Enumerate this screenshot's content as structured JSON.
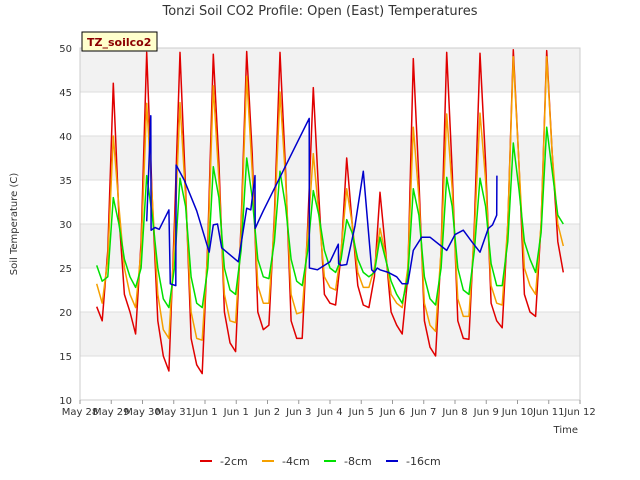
{
  "chart_data": {
    "type": "line",
    "title": "Tonzi Soil CO2 Profile: Open (East) Temperatures",
    "xlabel": "Time",
    "ylabel": "Soil Temperature (C)",
    "site_label": "TZ_soilco2",
    "ylim": [
      10,
      50
    ],
    "yticks": [
      10,
      15,
      20,
      25,
      30,
      35,
      40,
      45,
      50
    ],
    "xlim": [
      "2024-05-28",
      "2024-06-12"
    ],
    "xtick_labels": [
      "May 28",
      "May 29",
      "May 30",
      "May 31",
      "Jun 1",
      "Jun 1",
      "Jun 2",
      "Jun 3",
      "Jun 4",
      "Jun 5",
      "Jun 6",
      "Jun 7",
      "Jun 8",
      "Jun 9",
      "Jun 10",
      "Jun 11",
      "Jun 12"
    ],
    "grid": "horizontal bands",
    "legend_position": "bottom",
    "series": [
      {
        "name": "-2cm",
        "color": "#e00000",
        "x": [
          "2024-05-28T12:00",
          "2024-05-28T16:00",
          "2024-05-28T20:00",
          "2024-05-29T00:00",
          "2024-05-29T04:00",
          "2024-05-29T08:00",
          "2024-05-29T12:00",
          "2024-05-29T16:00",
          "2024-05-29T20:00",
          "2024-05-30T00:00",
          "2024-05-30T04:00",
          "2024-05-30T08:00",
          "2024-05-30T12:00",
          "2024-05-30T16:00",
          "2024-05-30T20:00",
          "2024-05-31T00:00",
          "2024-05-31T04:00",
          "2024-05-31T08:00",
          "2024-05-31T12:00",
          "2024-05-31T16:00",
          "2024-05-31T20:00",
          "2024-06-01T00:00",
          "2024-06-01T04:00",
          "2024-06-01T08:00",
          "2024-06-01T12:00",
          "2024-06-01T16:00",
          "2024-06-01T20:00",
          "2024-06-02T00:00",
          "2024-06-02T04:00",
          "2024-06-02T08:00",
          "2024-06-02T12:00",
          "2024-06-02T16:00",
          "2024-06-02T20:00",
          "2024-06-03T00:00",
          "2024-06-03T04:00",
          "2024-06-03T08:00",
          "2024-06-03T12:00",
          "2024-06-03T16:00",
          "2024-06-03T20:00",
          "2024-06-04T00:00",
          "2024-06-04T04:00",
          "2024-06-04T08:00",
          "2024-06-04T12:00",
          "2024-06-04T16:00",
          "2024-06-04T20:00",
          "2024-06-05T00:00",
          "2024-06-05T04:00",
          "2024-06-05T08:00",
          "2024-06-05T12:00",
          "2024-06-05T16:00",
          "2024-06-05T20:00",
          "2024-06-06T00:00",
          "2024-06-06T04:00",
          "2024-06-06T08:00",
          "2024-06-06T12:00",
          "2024-06-06T16:00",
          "2024-06-06T20:00",
          "2024-06-07T00:00",
          "2024-06-07T04:00",
          "2024-06-07T08:00",
          "2024-06-07T12:00",
          "2024-06-07T16:00",
          "2024-06-07T20:00",
          "2024-06-08T00:00",
          "2024-06-08T04:00",
          "2024-06-08T08:00",
          "2024-06-08T12:00",
          "2024-06-08T16:00",
          "2024-06-08T20:00",
          "2024-06-09T00:00",
          "2024-06-09T04:00",
          "2024-06-09T08:00",
          "2024-06-09T12:00",
          "2024-06-09T16:00",
          "2024-06-09T20:00",
          "2024-06-10T00:00",
          "2024-06-10T04:00",
          "2024-06-10T08:00",
          "2024-06-10T12:00",
          "2024-06-10T16:00",
          "2024-06-10T20:00",
          "2024-06-11T00:00",
          "2024-06-11T04:00",
          "2024-06-11T08:00",
          "2024-06-11T12:00"
        ],
        "y": [
          20.6,
          19.0,
          27.0,
          46.0,
          31.0,
          22.0,
          20.0,
          17.5,
          28.0,
          49.5,
          33.0,
          19.0,
          15.0,
          13.3,
          30.0,
          49.5,
          34.0,
          17.0,
          14.0,
          13.0,
          28.0,
          49.3,
          37.0,
          20.0,
          16.5,
          15.5,
          30.0,
          49.6,
          38.0,
          20.0,
          18.0,
          18.5,
          31.0,
          49.5,
          36.0,
          19.0,
          17.0,
          17.0,
          30.0,
          45.5,
          33.0,
          22.0,
          21.0,
          20.8,
          26.5,
          37.5,
          30.0,
          23.0,
          20.8,
          20.5,
          24.0,
          33.6,
          27.0,
          20.0,
          18.5,
          17.5,
          24.0,
          48.8,
          35.0,
          19.0,
          16.0,
          15.0,
          27.0,
          49.5,
          36.0,
          19.0,
          17.0,
          16.9,
          30.0,
          49.4,
          37.0,
          21.0,
          19.0,
          18.2,
          30.0,
          49.8,
          37.0,
          22.0,
          20.0,
          19.5,
          30.0,
          49.7,
          38.0,
          28.0,
          24.5
        ]
      },
      {
        "name": "-4cm",
        "color": "#f5a000",
        "x": [
          "2024-05-28T12:00",
          "2024-05-28T16:00",
          "2024-05-28T20:00",
          "2024-05-29T00:00",
          "2024-05-29T04:00",
          "2024-05-29T08:00",
          "2024-05-29T12:00",
          "2024-05-29T16:00",
          "2024-05-29T20:00",
          "2024-05-30T00:00",
          "2024-05-30T04:00",
          "2024-05-30T08:00",
          "2024-05-30T12:00",
          "2024-05-30T16:00",
          "2024-05-30T20:00",
          "2024-05-31T00:00",
          "2024-05-31T04:00",
          "2024-05-31T08:00",
          "2024-05-31T12:00",
          "2024-05-31T16:00",
          "2024-05-31T20:00",
          "2024-06-01T00:00",
          "2024-06-01T04:00",
          "2024-06-01T08:00",
          "2024-06-01T12:00",
          "2024-06-01T16:00",
          "2024-06-01T20:00",
          "2024-06-02T00:00",
          "2024-06-02T04:00",
          "2024-06-02T08:00",
          "2024-06-02T12:00",
          "2024-06-02T16:00",
          "2024-06-02T20:00",
          "2024-06-03T00:00",
          "2024-06-03T04:00",
          "2024-06-03T08:00",
          "2024-06-03T12:00",
          "2024-06-03T16:00",
          "2024-06-03T20:00",
          "2024-06-04T00:00",
          "2024-06-04T04:00",
          "2024-06-04T08:00",
          "2024-06-04T12:00",
          "2024-06-04T16:00",
          "2024-06-04T20:00",
          "2024-06-05T00:00",
          "2024-06-05T04:00",
          "2024-06-05T08:00",
          "2024-06-05T12:00",
          "2024-06-05T16:00",
          "2024-06-05T20:00",
          "2024-06-06T00:00",
          "2024-06-06T04:00",
          "2024-06-06T08:00",
          "2024-06-06T12:00",
          "2024-06-06T16:00",
          "2024-06-06T20:00",
          "2024-06-07T00:00",
          "2024-06-07T04:00",
          "2024-06-07T08:00",
          "2024-06-07T12:00",
          "2024-06-07T16:00",
          "2024-06-07T20:00",
          "2024-06-08T00:00",
          "2024-06-08T04:00",
          "2024-06-08T08:00",
          "2024-06-08T12:00",
          "2024-06-08T16:00",
          "2024-06-08T20:00",
          "2024-06-09T00:00",
          "2024-06-09T04:00",
          "2024-06-09T08:00",
          "2024-06-09T12:00",
          "2024-06-09T16:00",
          "2024-06-09T20:00",
          "2024-06-10T00:00",
          "2024-06-10T04:00",
          "2024-06-10T08:00",
          "2024-06-10T12:00",
          "2024-06-10T16:00",
          "2024-06-10T20:00",
          "2024-06-11T00:00",
          "2024-06-11T04:00",
          "2024-06-11T08:00",
          "2024-06-11T12:00"
        ],
        "y": [
          23.2,
          21.0,
          26.0,
          40.0,
          32.0,
          25.0,
          22.0,
          20.5,
          27.0,
          43.7,
          33.0,
          22.0,
          18.0,
          17.0,
          28.0,
          43.8,
          33.0,
          20.0,
          17.0,
          16.8,
          27.0,
          45.7,
          35.0,
          22.0,
          19.0,
          18.8,
          29.0,
          46.8,
          36.0,
          23.0,
          21.0,
          21.0,
          30.0,
          45.0,
          35.0,
          22.0,
          19.8,
          20.0,
          29.0,
          38.0,
          31.0,
          24.0,
          22.8,
          22.5,
          27.0,
          34.0,
          30.0,
          24.5,
          22.8,
          22.8,
          25.0,
          29.5,
          26.5,
          22.0,
          21.0,
          20.5,
          25.0,
          41.0,
          33.0,
          21.0,
          18.5,
          17.8,
          27.0,
          42.5,
          34.0,
          21.5,
          19.5,
          19.5,
          29.0,
          42.6,
          35.0,
          23.0,
          21.0,
          20.8,
          30.0,
          49.0,
          37.0,
          25.0,
          23.0,
          22.0,
          30.0,
          49.0,
          38.0,
          30.0,
          27.5
        ]
      },
      {
        "name": "-8cm",
        "color": "#00e000",
        "x": [
          "2024-05-28T12:00",
          "2024-05-28T16:00",
          "2024-05-28T20:00",
          "2024-05-29T00:00",
          "2024-05-29T04:00",
          "2024-05-29T08:00",
          "2024-05-29T12:00",
          "2024-05-29T16:00",
          "2024-05-29T20:00",
          "2024-05-30T00:00",
          "2024-05-30T04:00",
          "2024-05-30T08:00",
          "2024-05-30T12:00",
          "2024-05-30T16:00",
          "2024-05-30T20:00",
          "2024-05-31T00:00",
          "2024-05-31T04:00",
          "2024-05-31T08:00",
          "2024-05-31T12:00",
          "2024-05-31T16:00",
          "2024-05-31T20:00",
          "2024-06-01T00:00",
          "2024-06-01T04:00",
          "2024-06-01T08:00",
          "2024-06-01T12:00",
          "2024-06-01T16:00",
          "2024-06-01T20:00",
          "2024-06-02T00:00",
          "2024-06-02T04:00",
          "2024-06-02T08:00",
          "2024-06-02T12:00",
          "2024-06-02T16:00",
          "2024-06-02T20:00",
          "2024-06-03T00:00",
          "2024-06-03T04:00",
          "2024-06-03T08:00",
          "2024-06-03T12:00",
          "2024-06-03T16:00",
          "2024-06-03T20:00",
          "2024-06-04T00:00",
          "2024-06-04T04:00",
          "2024-06-04T08:00",
          "2024-06-04T12:00",
          "2024-06-04T16:00",
          "2024-06-04T20:00",
          "2024-06-05T00:00",
          "2024-06-05T04:00",
          "2024-06-05T08:00",
          "2024-06-05T12:00",
          "2024-06-05T16:00",
          "2024-06-05T20:00",
          "2024-06-06T00:00",
          "2024-06-06T04:00",
          "2024-06-06T08:00",
          "2024-06-06T12:00",
          "2024-06-06T16:00",
          "2024-06-06T20:00",
          "2024-06-07T00:00",
          "2024-06-07T04:00",
          "2024-06-07T08:00",
          "2024-06-07T12:00",
          "2024-06-07T16:00",
          "2024-06-07T20:00",
          "2024-06-08T00:00",
          "2024-06-08T04:00",
          "2024-06-08T08:00",
          "2024-06-08T12:00",
          "2024-06-08T16:00",
          "2024-06-08T20:00",
          "2024-06-09T00:00",
          "2024-06-09T04:00",
          "2024-06-09T08:00",
          "2024-06-09T12:00",
          "2024-06-09T16:00",
          "2024-06-09T20:00",
          "2024-06-10T00:00",
          "2024-06-10T04:00",
          "2024-06-10T08:00",
          "2024-06-10T12:00",
          "2024-06-10T16:00",
          "2024-06-10T20:00",
          "2024-06-11T00:00",
          "2024-06-11T04:00",
          "2024-06-11T08:00",
          "2024-06-11T12:00"
        ],
        "y": [
          25.3,
          23.5,
          24.0,
          33.0,
          30.0,
          26.0,
          24.0,
          22.8,
          25.0,
          35.5,
          31.0,
          25.0,
          21.5,
          20.5,
          25.0,
          35.2,
          32.0,
          24.0,
          21.0,
          20.5,
          25.0,
          36.5,
          33.0,
          25.0,
          22.5,
          22.0,
          27.0,
          37.5,
          33.0,
          26.0,
          24.0,
          23.8,
          28.0,
          36.0,
          32.0,
          26.0,
          23.5,
          23.0,
          27.0,
          33.8,
          31.0,
          27.0,
          25.0,
          24.5,
          26.0,
          30.5,
          29.0,
          26.0,
          24.5,
          24.0,
          24.5,
          28.5,
          26.0,
          23.5,
          22.0,
          21.0,
          24.0,
          34.0,
          31.0,
          24.0,
          21.5,
          20.8,
          25.0,
          35.3,
          32.0,
          25.0,
          22.5,
          22.0,
          27.0,
          35.2,
          32.0,
          25.5,
          23.0,
          23.0,
          28.0,
          39.2,
          34.0,
          28.0,
          26.0,
          24.5,
          29.0,
          41.0,
          36.0,
          31.0,
          30.0
        ]
      },
      {
        "name": "-16cm",
        "color": "#0000cc",
        "x": [
          "2024-05-30T00:00",
          "2024-05-30T03:00",
          "2024-05-30T03:10",
          "2024-05-30T06:00",
          "2024-05-30T09:00",
          "2024-05-30T16:00",
          "2024-05-30T17:00",
          "2024-05-30T21:00",
          "2024-05-30T21:10",
          "2024-05-31T03:00",
          "2024-05-31T12:00",
          "2024-05-31T21:00",
          "2024-06-01T00:00",
          "2024-06-01T03:00",
          "2024-06-01T06:00",
          "2024-06-01T09:00",
          "2024-06-01T18:00",
          "2024-06-02T00:00",
          "2024-06-02T03:00",
          "2024-06-02T06:00",
          "2024-06-02T06:10",
          "2024-06-02T09:00",
          "2024-06-02T12:00",
          "2024-06-03T21:00",
          "2024-06-03T21:10",
          "2024-06-04T03:00",
          "2024-06-04T12:00",
          "2024-06-04T18:00",
          "2024-06-04T18:10",
          "2024-06-04T20:00",
          "2024-06-05T00:00",
          "2024-06-05T06:00",
          "2024-06-05T12:00",
          "2024-06-05T18:00",
          "2024-06-05T20:00",
          "2024-06-05T22:00",
          "2024-06-06T00:00",
          "2024-06-06T06:00",
          "2024-06-06T12:00",
          "2024-06-06T16:00",
          "2024-06-06T20:00",
          "2024-06-07T00:00",
          "2024-06-07T06:00",
          "2024-06-07T12:00",
          "2024-06-07T20:00",
          "2024-06-08T00:00",
          "2024-06-08T06:00",
          "2024-06-08T12:00",
          "2024-06-08T18:00",
          "2024-06-09T00:00",
          "2024-06-09T06:00",
          "2024-06-09T09:00",
          "2024-06-09T12:00",
          "2024-06-09T12:10"
        ],
        "y": [
          30.3,
          42.3,
          29.3,
          29.6,
          29.4,
          31.6,
          23.2,
          23.0,
          36.7,
          35.0,
          31.5,
          26.8,
          29.9,
          30.0,
          27.3,
          26.9,
          25.7,
          31.8,
          31.6,
          35.5,
          29.5,
          30.5,
          31.5,
          42.0,
          25.0,
          24.8,
          25.7,
          27.7,
          25.5,
          25.3,
          25.4,
          29.8,
          36.0,
          24.8,
          24.5,
          25.0,
          24.8,
          24.5,
          24.0,
          23.2,
          23.2,
          27.0,
          28.5,
          28.5,
          27.5,
          27.0,
          28.8,
          29.3,
          28.0,
          26.8,
          29.5,
          29.9,
          31.0,
          35.5
        ]
      }
    ]
  }
}
